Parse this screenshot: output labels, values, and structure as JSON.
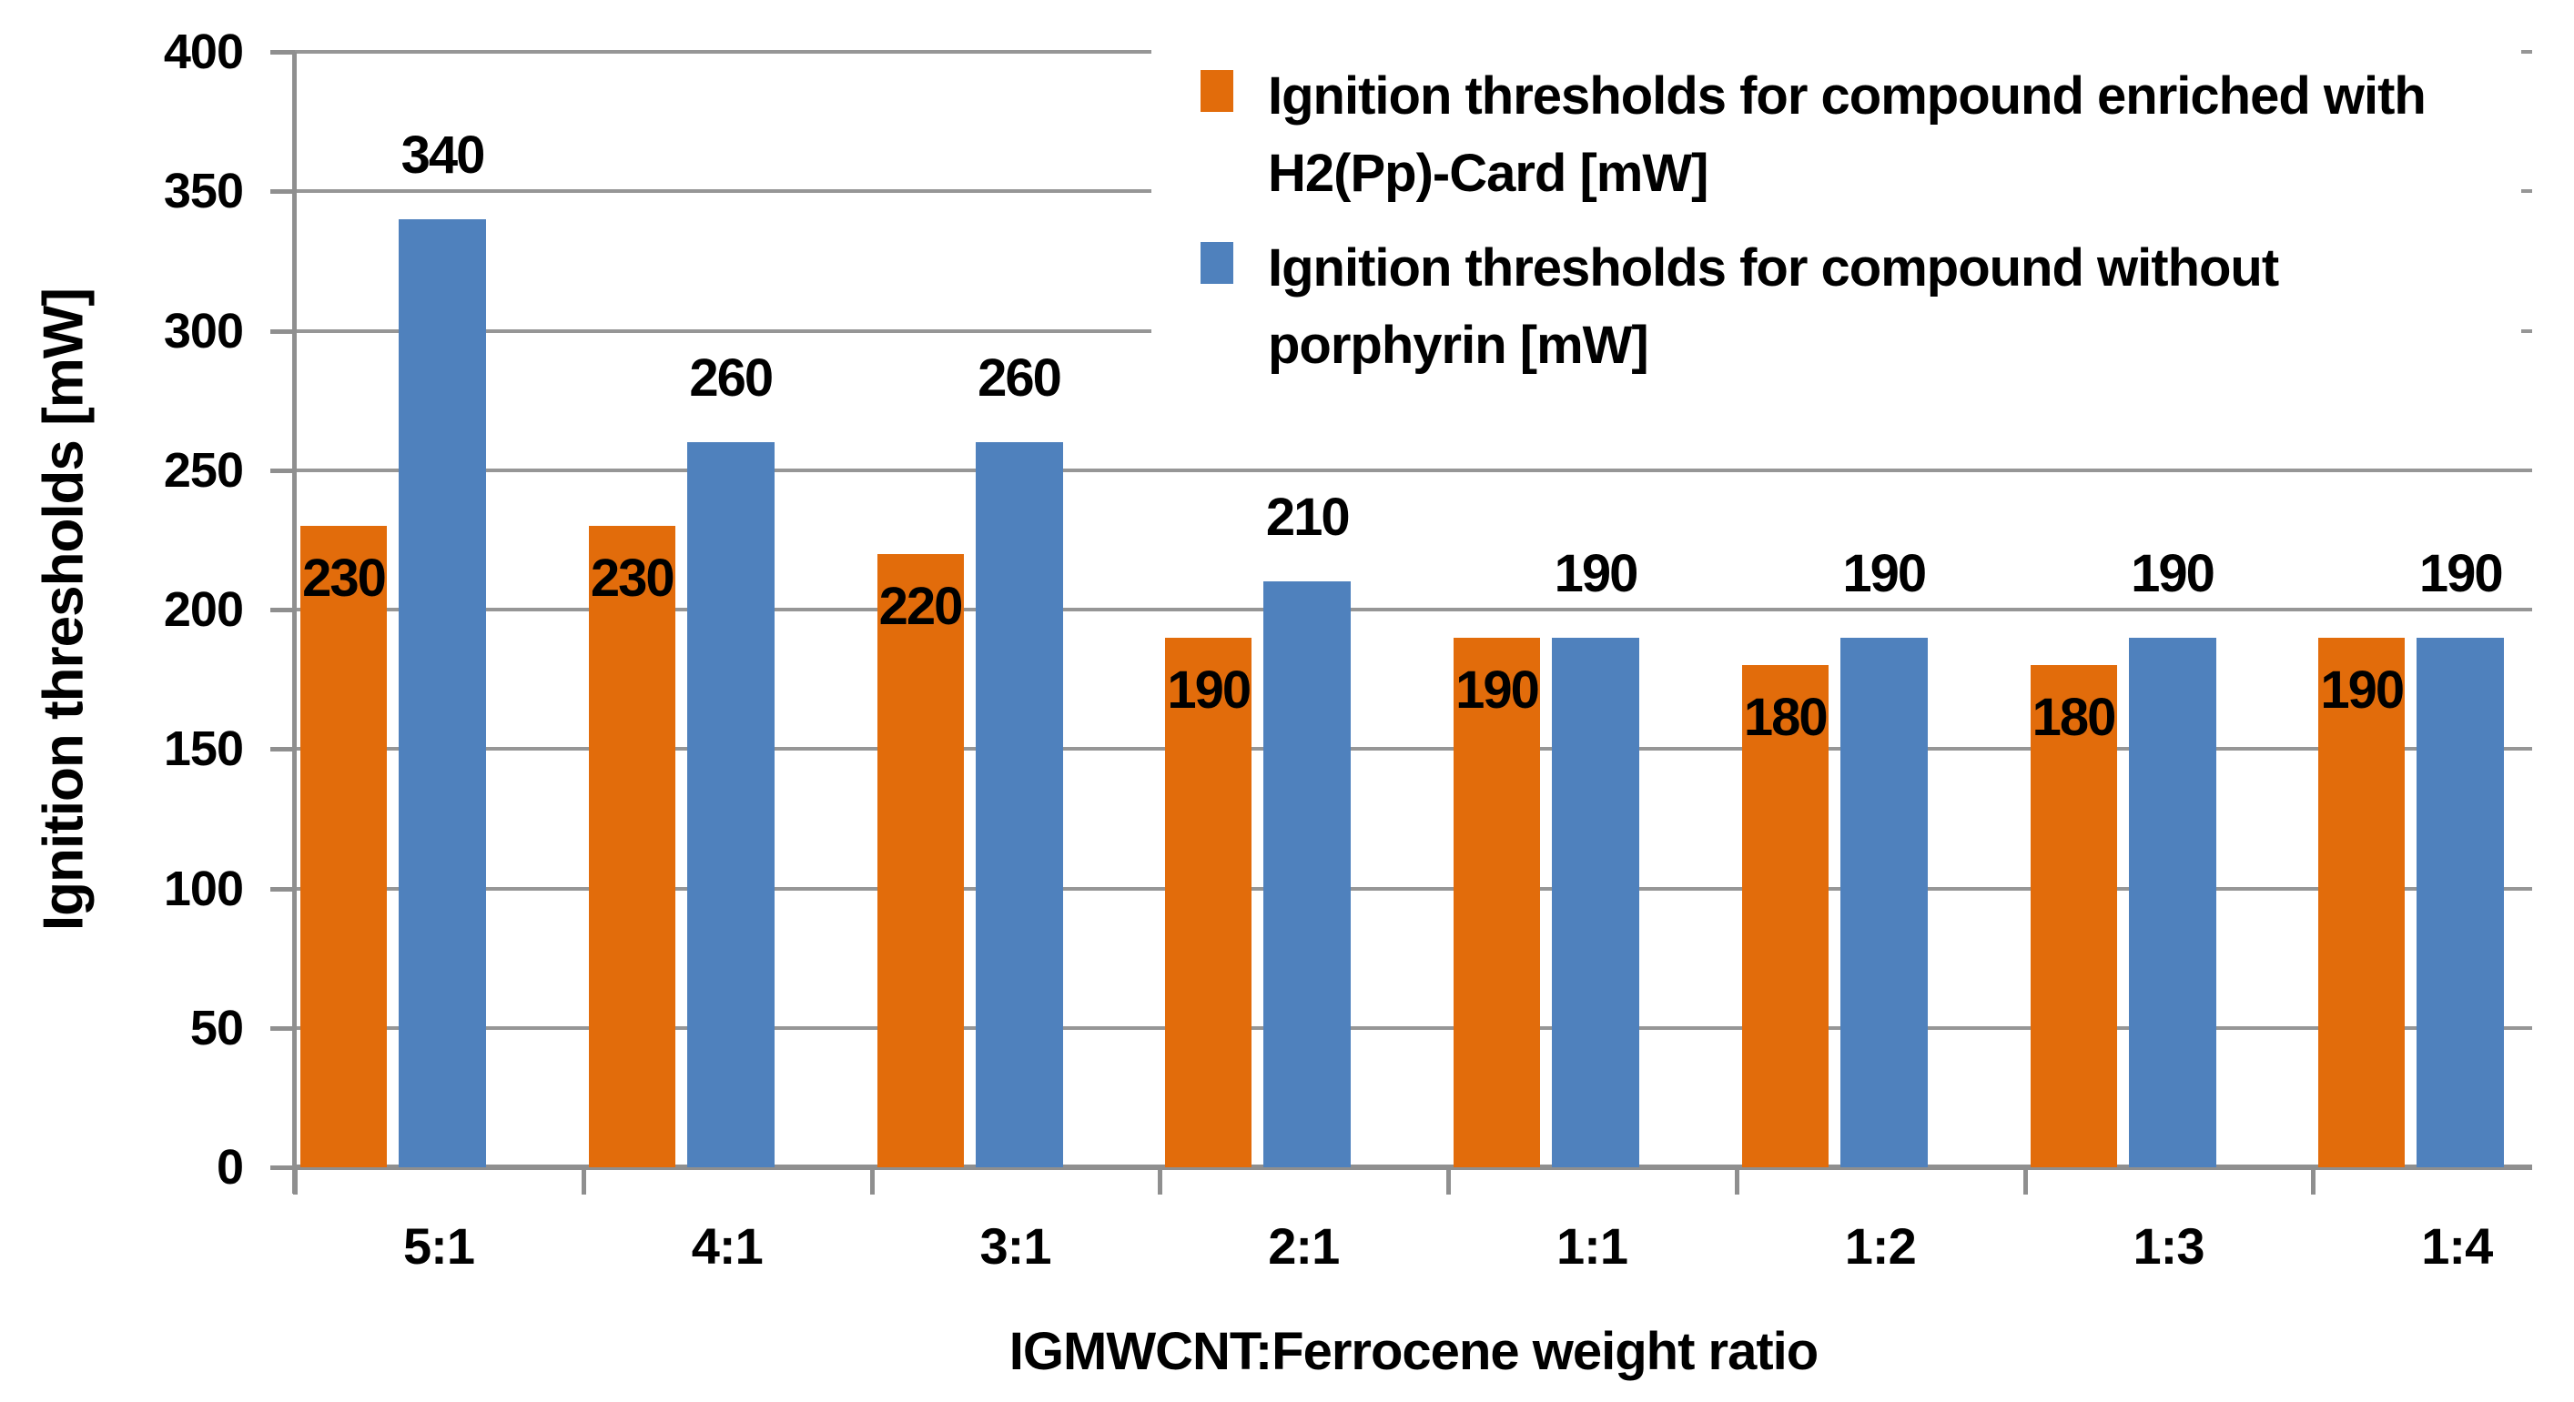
{
  "chart_data": {
    "type": "bar",
    "title": "",
    "xlabel": "IGMWCNT:Ferrocene weight ratio",
    "ylabel": "Ignition thresholds [mW]",
    "categories": [
      "5:1",
      "4:1",
      "3:1",
      "2:1",
      "1:1",
      "1:2",
      "1:3",
      "1:4"
    ],
    "series": [
      {
        "name": "Ignition thresholds for compound enriched with H2(Pp)-Card [mW]",
        "color": "#e26c0b",
        "values": [
          230,
          230,
          220,
          190,
          190,
          180,
          180,
          190
        ],
        "label_position": "inside-end"
      },
      {
        "name": "Ignition thresholds for compound without porphyrin [mW]",
        "color": "#4f81bd",
        "values": [
          340,
          260,
          260,
          210,
          190,
          190,
          190,
          190
        ],
        "label_position": "outside-end"
      }
    ],
    "ylim": [
      0,
      400
    ],
    "yticks": [
      0,
      50,
      100,
      150,
      200,
      250,
      300,
      350,
      400
    ],
    "grid": true,
    "grid_color": "#969696",
    "axis_color": "#8f8f8f",
    "label_color": "#000000",
    "legend_position": "top-right",
    "legend": [
      {
        "color": "#e26c0b",
        "lines": [
          "Ignition thresholds for compound enriched with",
          "H2(Pp)-Card [mW]"
        ]
      },
      {
        "color": "#4f81bd",
        "lines": [
          "Ignition thresholds for compound without",
          "porphyrin [mW]"
        ]
      }
    ]
  }
}
